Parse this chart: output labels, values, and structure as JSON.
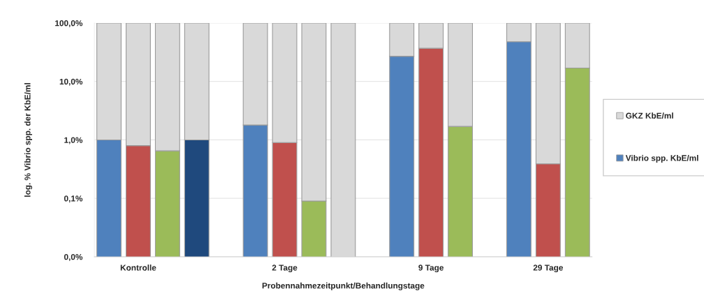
{
  "chart_data": {
    "type": "bar",
    "stacked": true,
    "log": "y",
    "xlabel": "Probennahmezeitpunkt/Behandlungstage",
    "ylabel": "log. % Vibrio spp. der KbE/ml",
    "categories": [
      null,
      "Kontrolle",
      null,
      null,
      null,
      null,
      "2 Tage",
      null,
      null,
      null,
      null,
      "9 Tage",
      null,
      null,
      null,
      "29 Tage",
      null
    ],
    "series": [
      {
        "name": "Vibrio spp. KbE/ml",
        "color": "#4f81bd",
        "colors": [
          "#4f81bd",
          "#c0504d",
          "#9bbb59",
          "#1f497d",
          null,
          "#4f81bd",
          "#c0504d",
          "#9bbb59",
          null,
          null,
          "#4f81bd",
          "#c0504d",
          "#9bbb59",
          null,
          "#4f81bd",
          "#c0504d",
          "#9bbb59"
        ],
        "values": [
          1.0,
          0.8,
          0.65,
          1.0,
          null,
          1.8,
          0.9,
          0.09,
          null,
          null,
          27,
          37,
          1.7,
          null,
          48,
          0.39,
          17
        ]
      },
      {
        "name": "GKZ KbE/ml",
        "color": "#d9d9d9",
        "values": [
          99.0,
          99.2,
          99.35,
          99.0,
          null,
          98.2,
          99.1,
          99.91,
          100,
          null,
          73,
          63,
          98.3,
          null,
          52,
          99.61,
          83
        ]
      }
    ],
    "ylim": [
      0.01,
      100
    ],
    "yticks": [
      {
        "value": 0.01,
        "label": "0,0%"
      },
      {
        "value": 0.1,
        "label": "0,1%"
      },
      {
        "value": 1,
        "label": "1,0%"
      },
      {
        "value": 10,
        "label": "10,0%"
      },
      {
        "value": 100,
        "label": "100,0%"
      }
    ],
    "grid": "y",
    "legend": "right"
  }
}
